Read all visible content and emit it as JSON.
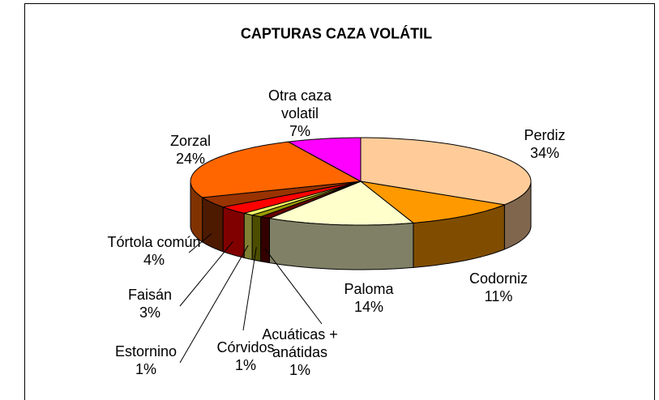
{
  "chart_data": {
    "type": "pie3d",
    "title": "CAPTURAS CAZA VOLÁTIL",
    "categories": [
      "Perdiz",
      "Codorniz",
      "Paloma",
      "Acuáticas + anátidas",
      "Córvidos",
      "Estornino",
      "Faisán",
      "Tórtola común",
      "Zorzal",
      "Otra caza volatil"
    ],
    "values": [
      34,
      11,
      14,
      1,
      1,
      1,
      3,
      4,
      24,
      7
    ],
    "value_labels": [
      "34%",
      "11%",
      "14%",
      "1%",
      "1%",
      "1%",
      "3%",
      "4%",
      "24%",
      "7%"
    ],
    "colors": [
      "#FFCC99",
      "#FF9900",
      "#FFFFCC",
      "#660000",
      "#999900",
      "#FFFF66",
      "#FF0000",
      "#993300",
      "#FF6600",
      "#FF00FF"
    ]
  }
}
